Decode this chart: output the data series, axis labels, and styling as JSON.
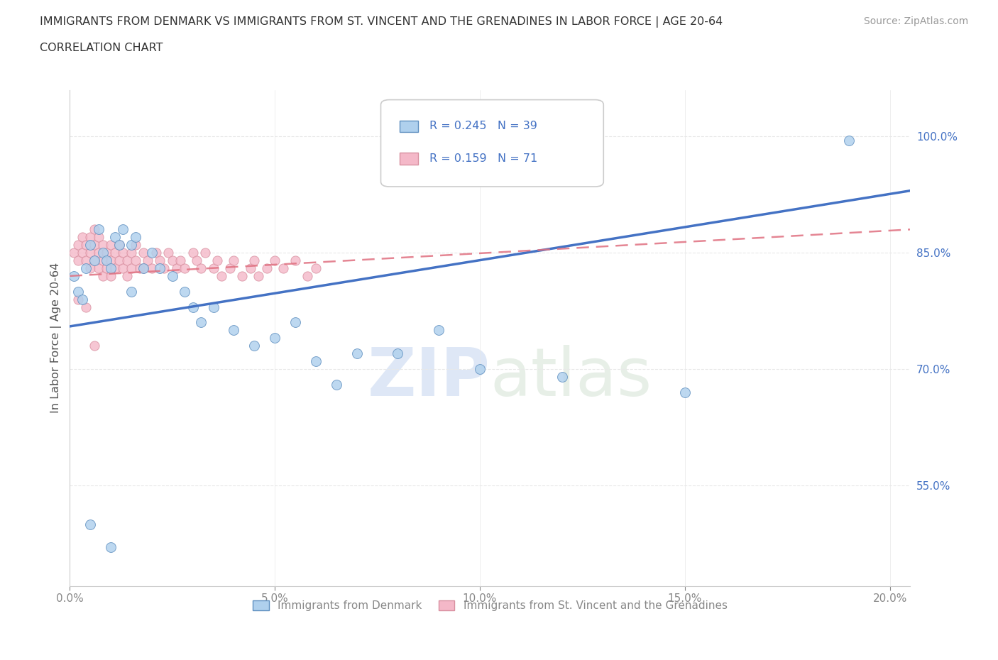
{
  "title_line1": "IMMIGRANTS FROM DENMARK VS IMMIGRANTS FROM ST. VINCENT AND THE GRENADINES IN LABOR FORCE | AGE 20-64",
  "title_line2": "CORRELATION CHART",
  "source_text": "Source: ZipAtlas.com",
  "ylabel": "In Labor Force | Age 20-64",
  "xlim": [
    0.0,
    0.205
  ],
  "ylim": [
    0.42,
    1.06
  ],
  "xticks": [
    0.0,
    0.05,
    0.1,
    0.15,
    0.2
  ],
  "yticks": [
    0.55,
    0.7,
    0.85,
    1.0
  ],
  "watermark_zip": "ZIP",
  "watermark_atlas": "atlas",
  "legend_label1": "Immigrants from Denmark",
  "legend_label2": "Immigrants from St. Vincent and the Grenadines",
  "r1": 0.245,
  "n1": 39,
  "r2": 0.159,
  "n2": 71,
  "color1": "#afd0ed",
  "color2": "#f4b8c8",
  "line_color1": "#4472c4",
  "line_color2": "#e07080",
  "background_color": "#ffffff",
  "grid_color": "#e8e8e8",
  "title_color": "#333333",
  "axis_label_color": "#555555",
  "tick_color": "#888888",
  "right_tick_color": "#4472c4",
  "denmark_x": [
    0.001,
    0.002,
    0.003,
    0.004,
    0.005,
    0.006,
    0.007,
    0.008,
    0.009,
    0.01,
    0.011,
    0.012,
    0.013,
    0.015,
    0.016,
    0.018,
    0.02,
    0.022,
    0.025,
    0.028,
    0.03,
    0.032,
    0.035,
    0.04,
    0.045,
    0.05,
    0.055,
    0.06,
    0.065,
    0.07,
    0.08,
    0.09,
    0.1,
    0.12,
    0.15,
    0.005,
    0.01,
    0.015,
    0.19
  ],
  "denmark_y": [
    0.82,
    0.8,
    0.79,
    0.83,
    0.86,
    0.84,
    0.88,
    0.85,
    0.84,
    0.83,
    0.87,
    0.86,
    0.88,
    0.86,
    0.87,
    0.83,
    0.85,
    0.83,
    0.82,
    0.8,
    0.78,
    0.76,
    0.78,
    0.75,
    0.73,
    0.74,
    0.76,
    0.71,
    0.68,
    0.72,
    0.72,
    0.75,
    0.7,
    0.69,
    0.67,
    0.5,
    0.47,
    0.8,
    0.995
  ],
  "stvincent_x": [
    0.001,
    0.002,
    0.002,
    0.003,
    0.003,
    0.004,
    0.004,
    0.005,
    0.005,
    0.005,
    0.006,
    0.006,
    0.006,
    0.007,
    0.007,
    0.007,
    0.008,
    0.008,
    0.008,
    0.009,
    0.009,
    0.01,
    0.01,
    0.01,
    0.011,
    0.011,
    0.012,
    0.012,
    0.013,
    0.013,
    0.014,
    0.014,
    0.015,
    0.015,
    0.016,
    0.016,
    0.017,
    0.018,
    0.018,
    0.019,
    0.02,
    0.021,
    0.022,
    0.023,
    0.024,
    0.025,
    0.026,
    0.027,
    0.028,
    0.03,
    0.031,
    0.032,
    0.033,
    0.035,
    0.036,
    0.037,
    0.039,
    0.04,
    0.042,
    0.044,
    0.045,
    0.046,
    0.048,
    0.05,
    0.052,
    0.055,
    0.058,
    0.06,
    0.002,
    0.004,
    0.006
  ],
  "stvincent_y": [
    0.85,
    0.84,
    0.86,
    0.85,
    0.87,
    0.86,
    0.84,
    0.85,
    0.87,
    0.83,
    0.86,
    0.84,
    0.88,
    0.87,
    0.85,
    0.83,
    0.86,
    0.84,
    0.82,
    0.85,
    0.83,
    0.86,
    0.84,
    0.82,
    0.85,
    0.83,
    0.86,
    0.84,
    0.85,
    0.83,
    0.84,
    0.82,
    0.85,
    0.83,
    0.86,
    0.84,
    0.83,
    0.85,
    0.83,
    0.84,
    0.83,
    0.85,
    0.84,
    0.83,
    0.85,
    0.84,
    0.83,
    0.84,
    0.83,
    0.85,
    0.84,
    0.83,
    0.85,
    0.83,
    0.84,
    0.82,
    0.83,
    0.84,
    0.82,
    0.83,
    0.84,
    0.82,
    0.83,
    0.84,
    0.83,
    0.84,
    0.82,
    0.83,
    0.79,
    0.78,
    0.73
  ],
  "blue_line_x": [
    0.0,
    0.205
  ],
  "blue_line_y": [
    0.755,
    0.93
  ],
  "pink_line_x": [
    0.0,
    0.205
  ],
  "pink_line_y": [
    0.82,
    0.88
  ]
}
